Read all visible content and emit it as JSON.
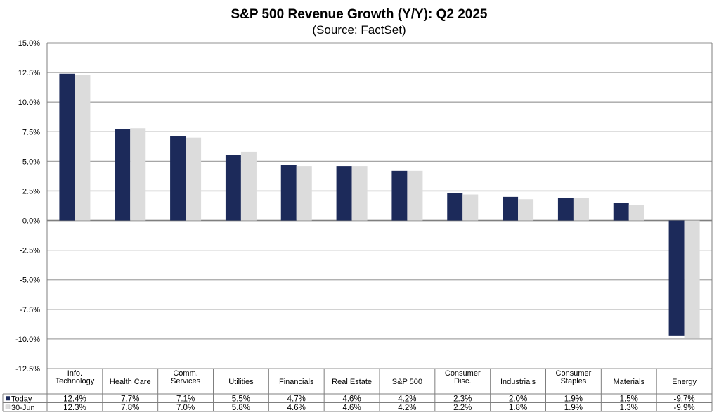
{
  "chart_data": {
    "type": "bar",
    "title": "S&P 500 Revenue Growth (Y/Y): Q2 2025",
    "subtitle": "(Source: FactSet)",
    "xlabel": "",
    "ylabel": "",
    "ylim": [
      -12.5,
      15.0
    ],
    "ytick_step": 2.5,
    "ytick_labels": [
      "15.0%",
      "12.5%",
      "10.0%",
      "7.5%",
      "5.0%",
      "2.5%",
      "0.0%",
      "-2.5%",
      "-5.0%",
      "-7.5%",
      "-10.0%",
      "-12.5%"
    ],
    "grid": true,
    "legend": "data-table-left",
    "categories": [
      [
        "Info.",
        "Technology"
      ],
      [
        "Health Care"
      ],
      [
        "Comm.",
        "Services"
      ],
      [
        "Utilities"
      ],
      [
        "Financials"
      ],
      [
        "Real Estate"
      ],
      [
        "S&P 500"
      ],
      [
        "Consumer",
        "Disc."
      ],
      [
        "Industrials"
      ],
      [
        "Consumer",
        "Staples"
      ],
      [
        "Materials"
      ],
      [
        "Energy"
      ]
    ],
    "series": [
      {
        "name": "Today",
        "color": "#1c2a5a",
        "values": [
          12.4,
          7.7,
          7.1,
          5.5,
          4.7,
          4.6,
          4.2,
          2.3,
          2.0,
          1.9,
          1.5,
          -9.7
        ],
        "labels": [
          "12.4%",
          "7.7%",
          "7.1%",
          "5.5%",
          "4.7%",
          "4.6%",
          "4.2%",
          "2.3%",
          "2.0%",
          "1.9%",
          "1.5%",
          "-9.7%"
        ]
      },
      {
        "name": "30-Jun",
        "color": "#dcdcdc",
        "values": [
          12.3,
          7.8,
          7.0,
          5.8,
          4.6,
          4.6,
          4.2,
          2.2,
          1.8,
          1.9,
          1.3,
          -9.9
        ],
        "labels": [
          "12.3%",
          "7.8%",
          "7.0%",
          "5.8%",
          "4.6%",
          "4.6%",
          "4.2%",
          "2.2%",
          "1.8%",
          "1.9%",
          "1.3%",
          "-9.9%"
        ]
      }
    ]
  }
}
